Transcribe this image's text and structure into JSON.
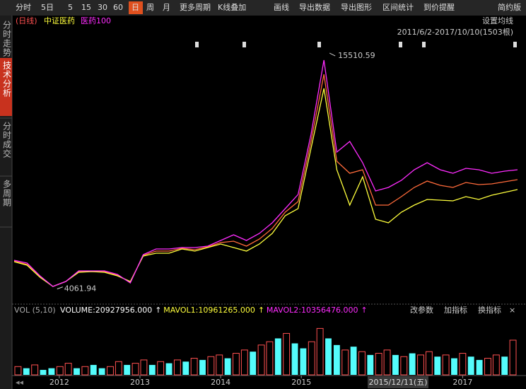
{
  "toolbar": {
    "items": [
      "分时",
      "5日",
      "5",
      "15",
      "30",
      "60",
      "日",
      "周",
      "月",
      "更多周期",
      "K线叠加",
      "画线",
      "导出数据",
      "导出图形",
      "区间统计",
      "到价提醒",
      "简约版"
    ],
    "active": 6
  },
  "sidebar": {
    "tabs": [
      "分时走势",
      "技术分析",
      "分时成交",
      "多周期"
    ],
    "active": 1
  },
  "chart_data": {
    "type": "line",
    "period": "(日线)",
    "range": "2011/6/2-2017/10/10(1503根)",
    "ma_button": "设置均线",
    "x": [
      2011.44,
      2011.6,
      2011.76,
      2011.92,
      2012.08,
      2012.24,
      2012.4,
      2012.56,
      2012.72,
      2012.88,
      2013.04,
      2013.2,
      2013.36,
      2013.52,
      2013.68,
      2013.84,
      2014,
      2014.16,
      2014.32,
      2014.48,
      2014.64,
      2014.8,
      2014.96,
      2015.12,
      2015.28,
      2015.44,
      2015.6,
      2015.76,
      2015.92,
      2016.08,
      2016.24,
      2016.4,
      2016.56,
      2016.72,
      2016.88,
      2017.04,
      2017.2,
      2017.36,
      2017.52,
      2017.68
    ],
    "xlim": [
      2011.44,
      2017.68
    ],
    "xticks": [
      2012,
      2013,
      2014,
      2015,
      2017
    ],
    "ylim": [
      3500,
      16200
    ],
    "cursor_date": "2015/12/11(五)",
    "series": [
      {
        "color": "#ff6a3a",
        "values": [
          5422,
          5250,
          4667,
          4186,
          4427,
          4907,
          4907,
          4907,
          4736,
          4392,
          5696,
          5902,
          5902,
          6040,
          5971,
          6108,
          6314,
          6383,
          6143,
          6486,
          7001,
          7790,
          8305,
          11222,
          14482,
          10261,
          9677,
          9849,
          8133,
          8133,
          8545,
          8991,
          9300,
          9094,
          8991,
          9231,
          9128,
          9162,
          9266,
          9369
        ]
      },
      {
        "name": "中证医药",
        "color": "#ffff3c",
        "values": [
          5388,
          5216,
          4633,
          4186,
          4427,
          4873,
          4907,
          4873,
          4701,
          4427,
          5662,
          5799,
          5799,
          6005,
          5902,
          6074,
          6246,
          6074,
          5902,
          6246,
          6760,
          7618,
          7962,
          10879,
          13796,
          9849,
          8133,
          9506,
          7447,
          7275,
          7790,
          8133,
          8408,
          8373,
          8339,
          8545,
          8408,
          8614,
          8751,
          8888
        ]
      },
      {
        "name": "医药100",
        "color": "#ff2cff",
        "values": [
          5456,
          5319,
          4701,
          4186,
          4427,
          4941,
          4941,
          4941,
          4770,
          4358,
          5731,
          6005,
          6005,
          6074,
          6074,
          6143,
          6417,
          6692,
          6417,
          6760,
          7275,
          7962,
          8648,
          11565,
          15169,
          10707,
          11222,
          10192,
          8820,
          8991,
          9334,
          9849,
          10192,
          9849,
          9677,
          9918,
          9849,
          9677,
          9780,
          9849
        ]
      }
    ],
    "high": 15510.59,
    "low": 4061.94
  },
  "volume": {
    "type": "bar",
    "label": "VOL (5,10)",
    "readouts": [
      {
        "text": "VOLUME:20927956.000",
        "color": "#ffffff"
      },
      {
        "text": "MAVOL1:10961265.000",
        "color": "#ffff3c"
      },
      {
        "text": "MAVOL2:10356476.000",
        "color": "#ff2cff"
      }
    ],
    "buttons": [
      "改参数",
      "加指标",
      "换指标",
      "×"
    ],
    "ylim": [
      0,
      32000000
    ],
    "up_color": "#ff5050",
    "down_color": "#54fcfc",
    "values": [
      5000000,
      4000000,
      6000000,
      3000000,
      4000000,
      5000000,
      7000000,
      4000000,
      5000000,
      6000000,
      4000000,
      5000000,
      8000000,
      6000000,
      7000000,
      9000000,
      6000000,
      8000000,
      7000000,
      9000000,
      8000000,
      10000000,
      9000000,
      11000000,
      12000000,
      10000000,
      13000000,
      15000000,
      14000000,
      18000000,
      20000000,
      22000000,
      25000000,
      19000000,
      16000000,
      20000000,
      28000000,
      22000000,
      18000000,
      15000000,
      17000000,
      14000000,
      12000000,
      13000000,
      15000000,
      12000000,
      11000000,
      13000000,
      12000000,
      14000000,
      11000000,
      12000000,
      10000000,
      13000000,
      11000000,
      9000000,
      10000000,
      12000000,
      11000000,
      20927956
    ],
    "up": [
      1,
      0,
      1,
      0,
      0,
      1,
      1,
      0,
      1,
      0,
      0,
      1,
      1,
      0,
      1,
      1,
      0,
      1,
      0,
      1,
      0,
      1,
      0,
      1,
      1,
      0,
      1,
      1,
      0,
      1,
      1,
      0,
      1,
      0,
      0,
      1,
      1,
      0,
      0,
      1,
      0,
      1,
      0,
      1,
      1,
      0,
      1,
      0,
      1,
      1,
      0,
      1,
      0,
      1,
      0,
      0,
      1,
      1,
      0,
      1
    ]
  }
}
